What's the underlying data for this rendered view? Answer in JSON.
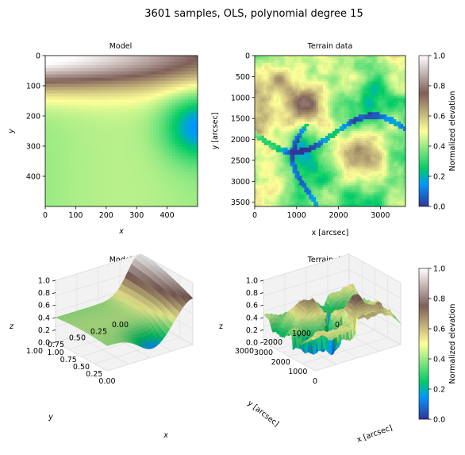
{
  "figure": {
    "suptitle": "3601 samples, OLS, polynomial degree 15"
  },
  "colormap": {
    "name": "terrain",
    "stops": [
      [
        0.0,
        "#333399"
      ],
      [
        0.15,
        "#0199fd"
      ],
      [
        0.25,
        "#01cc66"
      ],
      [
        0.5,
        "#ffff99"
      ],
      [
        0.75,
        "#7f5f58"
      ],
      [
        1.0,
        "#ffffff"
      ]
    ]
  },
  "chart_data": [
    {
      "type": "heatmap",
      "title": "Model",
      "xlabel": "x",
      "ylabel": "y",
      "xlim": [
        0,
        500
      ],
      "ylim": [
        500,
        0
      ],
      "xticks": [
        "0",
        "100",
        "200",
        "300",
        "400"
      ],
      "yticks": [
        "0",
        "100",
        "200",
        "300",
        "400"
      ],
      "description_values": "polynomial fit surface: high (~0.9) at top-left, low (~0.2) at right-middle, ~0.35-0.45 elsewhere"
    },
    {
      "type": "heatmap",
      "title": "Terrain data",
      "xlabel": "x [arcsec]",
      "ylabel": "y [arcsec]",
      "xlim": [
        0,
        3600
      ],
      "ylim": [
        3600,
        0
      ],
      "xticks": [
        "0",
        "1000",
        "2000",
        "3000"
      ],
      "yticks": [
        "0",
        "500",
        "1000",
        "1500",
        "2000",
        "2500",
        "3000",
        "3500"
      ]
    },
    {
      "type": "surface3d",
      "title": "Model",
      "xlabel": "x",
      "ylabel": "y",
      "zlabel": "z",
      "xticks": [
        "0.00",
        "0.25",
        "0.50",
        "0.75",
        "1.00"
      ],
      "yticks": [
        "0.00",
        "0.25",
        "0.50",
        "0.75",
        "1.00"
      ],
      "zticks": [
        "0.0",
        "0.2",
        "0.4",
        "0.6",
        "0.8",
        "1.0"
      ],
      "zlim": [
        0,
        1
      ]
    },
    {
      "type": "surface3d",
      "title": "Terrain data",
      "xlabel": "x [arcsec]",
      "ylabel": "y [arcsec]",
      "zlabel": "z",
      "xticks": [
        "0",
        "1000",
        "2000",
        "3000"
      ],
      "yticks": [
        "0",
        "1000",
        "2000",
        "3000"
      ],
      "zticks": [
        "0.0",
        "0.2",
        "0.4",
        "0.6",
        "0.8",
        "1.0"
      ],
      "zlim": [
        0,
        1
      ]
    }
  ],
  "colorbars": [
    {
      "label": "Normalized elevation",
      "ticks": [
        "0.0",
        "0.2",
        "0.4",
        "0.6",
        "0.8",
        "1.0"
      ],
      "range": [
        0,
        1
      ]
    },
    {
      "label": "Normalized elevation",
      "ticks": [
        "0.0",
        "0.2",
        "0.4",
        "0.6",
        "0.8",
        "1.0"
      ],
      "range": [
        0,
        1
      ]
    }
  ]
}
